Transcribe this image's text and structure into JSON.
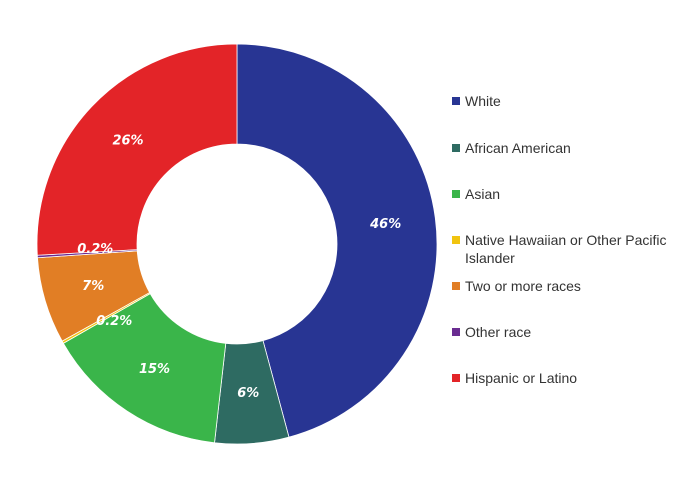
{
  "chart_data": {
    "type": "pie",
    "style": "donut",
    "categories": [
      "White",
      "African American",
      "Asian",
      "Native Hawaiian or Other Pacific Islander",
      "Two or more races",
      "Other race",
      "Hispanic or Latino"
    ],
    "values": [
      46,
      6,
      15,
      0.2,
      7,
      0.2,
      26
    ],
    "labels": [
      "46%",
      "6%",
      "15%",
      "0.2%",
      "7%",
      "0.2%",
      "26%"
    ],
    "colors": [
      "#283593",
      "#2e6b62",
      "#3ab54a",
      "#f1c40f",
      "#e17e25",
      "#6a2c91",
      "#e32428"
    ],
    "legend_position": "right",
    "grid": false
  }
}
